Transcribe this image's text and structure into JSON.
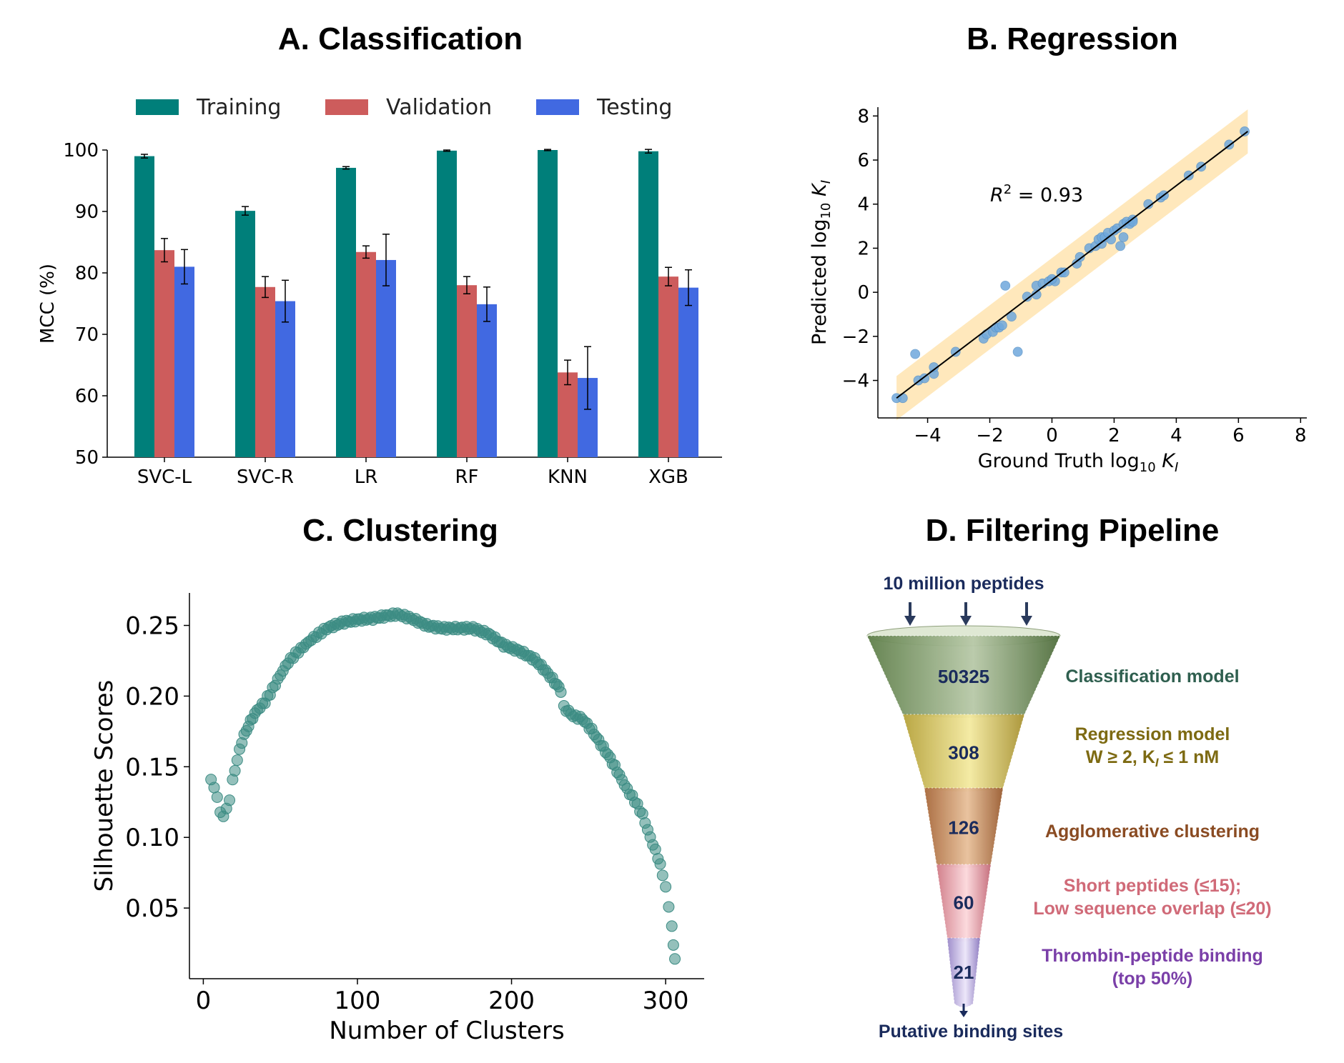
{
  "panels": {
    "a_title": "A. Classification",
    "b_title": "B. Regression",
    "c_title": "C. Clustering",
    "d_title": "D. Filtering Pipeline"
  },
  "chart_data": [
    {
      "type": "bar",
      "title": "A. Classification",
      "ylabel": "MCC (%)",
      "ylim": [
        50,
        100
      ],
      "yticks": [
        50,
        60,
        70,
        80,
        90,
        100
      ],
      "categories": [
        "SVC-L",
        "SVC-R",
        "LR",
        "RF",
        "KNN",
        "XGB"
      ],
      "legend_position": "top",
      "series": [
        {
          "name": "Training",
          "color": "#007f7a",
          "values": [
            99.0,
            90.1,
            97.1,
            99.9,
            100.0,
            99.8
          ],
          "errors": [
            0.3,
            0.7,
            0.2,
            0.1,
            0.1,
            0.3
          ]
        },
        {
          "name": "Validation",
          "color": "#cd5c5c",
          "values": [
            83.7,
            77.7,
            83.4,
            78.0,
            63.8,
            79.4
          ],
          "errors": [
            1.9,
            1.7,
            1.0,
            1.4,
            2.0,
            1.5
          ]
        },
        {
          "name": "Testing",
          "color": "#4169e1",
          "values": [
            81.0,
            75.4,
            82.1,
            74.9,
            62.9,
            77.6
          ],
          "errors": [
            2.8,
            3.4,
            4.2,
            2.8,
            5.1,
            2.9
          ]
        }
      ]
    },
    {
      "type": "scatter",
      "title": "B. Regression",
      "xlabel_main": "Ground Truth log",
      "xlabel_sub": "10",
      "xlabel_k": "K",
      "xlabel_ksub": "I",
      "ylabel_main": "Predicted log",
      "ylabel_sub": "10",
      "ylabel_k": "K",
      "ylabel_ksub": "I",
      "annotation_r": "R",
      "annotation_sup": "2",
      "annotation_val": " = 0.93",
      "xlim": [
        -5.6,
        8.2
      ],
      "ylim": [
        -5.7,
        8.4
      ],
      "xticks": [
        -4,
        -2,
        0,
        2,
        4,
        6,
        8
      ],
      "yticks": [
        -4,
        -2,
        0,
        2,
        4,
        6,
        8
      ],
      "xtick_labels": [
        "−4",
        "−2",
        "0",
        "2",
        "4",
        "6",
        "8"
      ],
      "ytick_labels": [
        "−4",
        "−2",
        "0",
        "2",
        "4",
        "6",
        "8"
      ],
      "fit_line": [
        [
          -5.0,
          -4.8
        ],
        [
          6.3,
          7.3
        ]
      ],
      "band_halfwidth": 1.0,
      "points": [
        [
          -5.0,
          -4.8
        ],
        [
          -4.8,
          -4.8
        ],
        [
          -4.3,
          -4.0
        ],
        [
          -4.1,
          -3.9
        ],
        [
          -3.8,
          -3.7
        ],
        [
          -3.8,
          -3.4
        ],
        [
          -4.4,
          -2.8
        ],
        [
          -3.1,
          -2.7
        ],
        [
          -2.2,
          -2.1
        ],
        [
          -2.1,
          -1.9
        ],
        [
          -1.9,
          -1.8
        ],
        [
          -1.8,
          -1.6
        ],
        [
          -1.7,
          -1.6
        ],
        [
          -1.6,
          -1.5
        ],
        [
          -1.3,
          -1.1
        ],
        [
          -1.5,
          0.3
        ],
        [
          -1.1,
          -2.7
        ],
        [
          -0.8,
          -0.2
        ],
        [
          -0.5,
          -0.1
        ],
        [
          -0.5,
          0.3
        ],
        [
          -0.3,
          0.4
        ],
        [
          -0.1,
          0.5
        ],
        [
          0.1,
          0.5
        ],
        [
          0.0,
          0.6
        ],
        [
          0.3,
          0.9
        ],
        [
          0.4,
          0.9
        ],
        [
          0.8,
          1.3
        ],
        [
          0.9,
          1.6
        ],
        [
          1.2,
          2.0
        ],
        [
          1.4,
          2.1
        ],
        [
          1.6,
          2.2
        ],
        [
          1.5,
          2.4
        ],
        [
          1.6,
          2.5
        ],
        [
          1.7,
          2.5
        ],
        [
          1.8,
          2.7
        ],
        [
          1.9,
          2.4
        ],
        [
          2.0,
          2.8
        ],
        [
          2.1,
          2.9
        ],
        [
          2.2,
          2.1
        ],
        [
          2.3,
          2.5
        ],
        [
          2.3,
          3.1
        ],
        [
          2.4,
          3.2
        ],
        [
          2.5,
          3.1
        ],
        [
          2.6,
          3.3
        ],
        [
          2.6,
          3.2
        ],
        [
          3.1,
          4.0
        ],
        [
          3.5,
          4.3
        ],
        [
          3.6,
          4.4
        ],
        [
          4.4,
          5.3
        ],
        [
          4.8,
          5.7
        ],
        [
          5.7,
          6.7
        ],
        [
          6.2,
          7.3
        ]
      ]
    },
    {
      "type": "scatter",
      "title": "C. Clustering",
      "xlabel": "Number of Clusters",
      "ylabel": "Silhouette Scores",
      "xlim": [
        -9,
        325
      ],
      "ylim": [
        0.0,
        0.273
      ],
      "xticks": [
        0,
        100,
        200,
        300
      ],
      "yticks": [
        0.05,
        0.1,
        0.15,
        0.2,
        0.25
      ],
      "ytick_labels": [
        "0.05",
        "0.10",
        "0.15",
        "0.20",
        "0.25"
      ],
      "color": "#3d8c84",
      "description_points": "dense sequence of silhouette scores for 5–306 clusters",
      "anchors": [
        [
          5,
          0.14
        ],
        [
          7,
          0.136
        ],
        [
          9,
          0.128
        ],
        [
          11,
          0.118
        ],
        [
          13,
          0.115
        ],
        [
          15,
          0.12
        ],
        [
          17,
          0.127
        ],
        [
          19,
          0.14
        ],
        [
          22,
          0.155
        ],
        [
          25,
          0.168
        ],
        [
          28,
          0.176
        ],
        [
          32,
          0.185
        ],
        [
          35,
          0.19
        ],
        [
          40,
          0.196
        ],
        [
          45,
          0.205
        ],
        [
          50,
          0.215
        ],
        [
          55,
          0.224
        ],
        [
          60,
          0.23
        ],
        [
          65,
          0.235
        ],
        [
          70,
          0.24
        ],
        [
          75,
          0.244
        ],
        [
          80,
          0.248
        ],
        [
          90,
          0.252
        ],
        [
          100,
          0.254
        ],
        [
          110,
          0.255
        ],
        [
          120,
          0.257
        ],
        [
          126,
          0.258
        ],
        [
          135,
          0.255
        ],
        [
          145,
          0.25
        ],
        [
          155,
          0.248
        ],
        [
          165,
          0.248
        ],
        [
          175,
          0.248
        ],
        [
          185,
          0.244
        ],
        [
          195,
          0.236
        ],
        [
          205,
          0.232
        ],
        [
          215,
          0.226
        ],
        [
          222,
          0.218
        ],
        [
          228,
          0.21
        ],
        [
          232,
          0.204
        ],
        [
          234,
          0.192
        ],
        [
          240,
          0.186
        ],
        [
          246,
          0.184
        ],
        [
          252,
          0.176
        ],
        [
          258,
          0.166
        ],
        [
          264,
          0.156
        ],
        [
          270,
          0.144
        ],
        [
          275,
          0.134
        ],
        [
          280,
          0.126
        ],
        [
          285,
          0.116
        ],
        [
          290,
          0.1
        ],
        [
          295,
          0.086
        ],
        [
          298,
          0.074
        ],
        [
          300,
          0.064
        ],
        [
          302,
          0.052
        ],
        [
          304,
          0.036
        ],
        [
          305,
          0.024
        ],
        [
          306,
          0.014
        ]
      ]
    }
  ],
  "funnel": {
    "top_label": "10 million peptides",
    "bottom_label": "Putative binding sites",
    "stages": [
      {
        "count": "50325",
        "label1": "Classification model",
        "label2": "",
        "color": "#2f5f4f"
      },
      {
        "count": "308",
        "label1": "Regression model",
        "label2": "W ≥ 2, K",
        "label2_sub": "I",
        "label2_tail": " ≤ 1 nM",
        "color": "#7d6a12"
      },
      {
        "count": "126",
        "label1": "Agglomerative clustering",
        "label2": "",
        "color": "#8a4b22"
      },
      {
        "count": "60",
        "label1": "Short peptides (≤15);",
        "label2": "Low sequence overlap (≤20)",
        "color": "#d06a78"
      },
      {
        "count": "21",
        "label1": "Thrombin-peptide binding",
        "label2": "(top 50%)",
        "color": "#7a3fa8"
      }
    ],
    "text_color": "#1a2b5c"
  }
}
